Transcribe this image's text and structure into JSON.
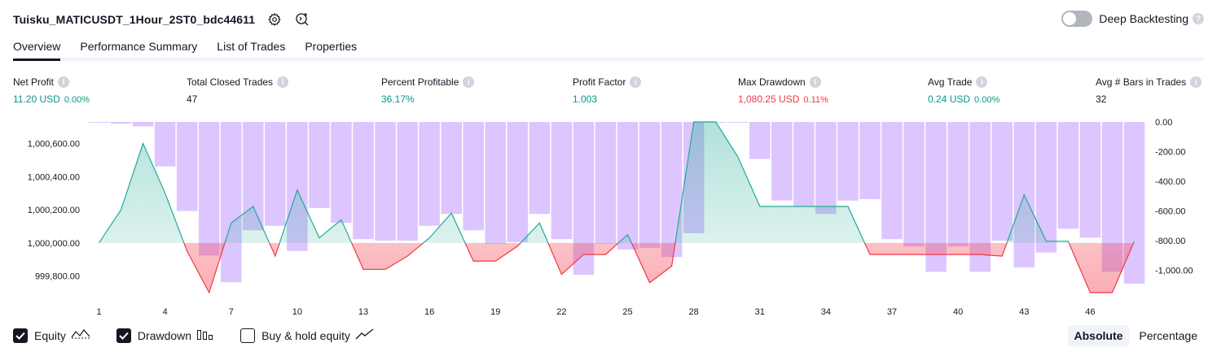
{
  "header": {
    "title": "Tuisku_MATICUSDT_1Hour_2ST0_bdc44611",
    "deep_backtesting_label": "Deep Backtesting",
    "deep_backtesting_enabled": false
  },
  "tabs": [
    {
      "label": "Overview",
      "active": true
    },
    {
      "label": "Performance Summary",
      "active": false
    },
    {
      "label": "List of Trades",
      "active": false
    },
    {
      "label": "Properties",
      "active": false
    }
  ],
  "metrics": [
    {
      "label": "Net Profit",
      "value": "11.20 USD",
      "pct": "0.00%",
      "color": "green"
    },
    {
      "label": "Total Closed Trades",
      "value": "47",
      "pct": "",
      "color": "dark"
    },
    {
      "label": "Percent Profitable",
      "value": "36.17%",
      "pct": "",
      "color": "green"
    },
    {
      "label": "Profit Factor",
      "value": "1.003",
      "pct": "",
      "color": "green"
    },
    {
      "label": "Max Drawdown",
      "value": "1,080.25 USD",
      "pct": "0.11%",
      "color": "red"
    },
    {
      "label": "Avg Trade",
      "value": "0.24 USD",
      "pct": "0.00%",
      "color": "green"
    },
    {
      "label": "Avg # Bars in Trades",
      "value": "32",
      "pct": "",
      "color": "dark"
    }
  ],
  "chart_data": {
    "type": "line",
    "left_axis": {
      "ticks": [
        "1,000,600.00",
        "1,000,400.00",
        "1,000,200.00",
        "1,000,000.00",
        "999,800.00"
      ],
      "tick_values": [
        1000600,
        1000400,
        1000200,
        1000000,
        999800
      ],
      "range": [
        999700,
        1000730
      ]
    },
    "right_axis": {
      "ticks": [
        "0.00",
        "-200.00",
        "-400.00",
        "-600.00",
        "-800.00",
        "-1,000.00"
      ],
      "tick_values": [
        0,
        -200,
        -400,
        -600,
        -800,
        -1000
      ],
      "range": [
        -1150,
        0
      ]
    },
    "x_ticks": [
      "1",
      "4",
      "7",
      "10",
      "13",
      "16",
      "19",
      "22",
      "25",
      "28",
      "31",
      "34",
      "37",
      "40",
      "43",
      "46"
    ],
    "x_tick_values": [
      1,
      4,
      7,
      10,
      13,
      16,
      19,
      22,
      25,
      28,
      31,
      34,
      37,
      40,
      43,
      46
    ],
    "baseline": 1000000,
    "series": [
      {
        "name": "Equity",
        "x": [
          1,
          2,
          3,
          4,
          5,
          6,
          7,
          8,
          9,
          10,
          11,
          12,
          13,
          14,
          15,
          16,
          17,
          18,
          19,
          20,
          21,
          22,
          23,
          24,
          25,
          26,
          27,
          28,
          29,
          30,
          31,
          32,
          33,
          34,
          35,
          36,
          37,
          38,
          39,
          40,
          41,
          42,
          43,
          44,
          45,
          46,
          47,
          48
        ],
        "values": [
          1000000,
          1000200,
          1000600,
          1000300,
          999950,
          999700,
          1000120,
          1000220,
          999920,
          1000320,
          1000030,
          1000140,
          999840,
          999840,
          999920,
          1000030,
          1000180,
          999890,
          999890,
          999980,
          1000120,
          999810,
          999930,
          999930,
          1000050,
          999760,
          999860,
          1000730,
          1000730,
          1000520,
          1000220,
          1000220,
          1000220,
          1000220,
          1000220,
          999930,
          999930,
          999930,
          999930,
          999930,
          999930,
          999920,
          1000290,
          1000010,
          1000010,
          999700,
          999700,
          1000010
        ]
      },
      {
        "name": "Drawdown",
        "x": [
          1,
          2,
          3,
          4,
          5,
          6,
          7,
          8,
          9,
          10,
          11,
          12,
          13,
          14,
          15,
          16,
          17,
          18,
          19,
          20,
          21,
          22,
          23,
          24,
          25,
          26,
          27,
          28,
          29,
          30,
          31,
          32,
          33,
          34,
          35,
          36,
          37,
          38,
          39,
          40,
          41,
          42,
          43,
          44,
          45,
          46,
          47,
          48
        ],
        "values": [
          0,
          -12,
          -30,
          -300,
          -600,
          -900,
          -1080,
          -730,
          -700,
          -870,
          -580,
          -680,
          -790,
          -800,
          -800,
          -700,
          -620,
          -730,
          -820,
          -810,
          -620,
          -790,
          -1030,
          -820,
          -860,
          -850,
          -910,
          -750,
          0,
          0,
          -250,
          -530,
          -570,
          -620,
          -530,
          -520,
          -790,
          -840,
          -1010,
          -840,
          -1010,
          -800,
          -980,
          -880,
          -720,
          -780,
          -1010,
          -1090
        ]
      }
    ],
    "legend": [
      {
        "label": "Equity",
        "checked": true
      },
      {
        "label": "Drawdown",
        "checked": true
      },
      {
        "label": "Buy & hold equity",
        "checked": false
      }
    ]
  },
  "modes": [
    {
      "label": "Absolute",
      "active": true
    },
    {
      "label": "Percentage",
      "active": false
    }
  ],
  "colors": {
    "equity_up": "#22ab94",
    "equity_down": "#f23645",
    "drawdown_bar": "#d1b3ff",
    "text": "#131722",
    "green": "#089981",
    "red": "#f23645"
  },
  "icons": {
    "settings": "gear-icon",
    "source": "source-code-icon",
    "help": "question-icon",
    "equity_legend": "equity-line-icon",
    "drawdown_legend": "drawdown-bars-icon",
    "buyhold_legend": "buy-hold-line-icon"
  }
}
